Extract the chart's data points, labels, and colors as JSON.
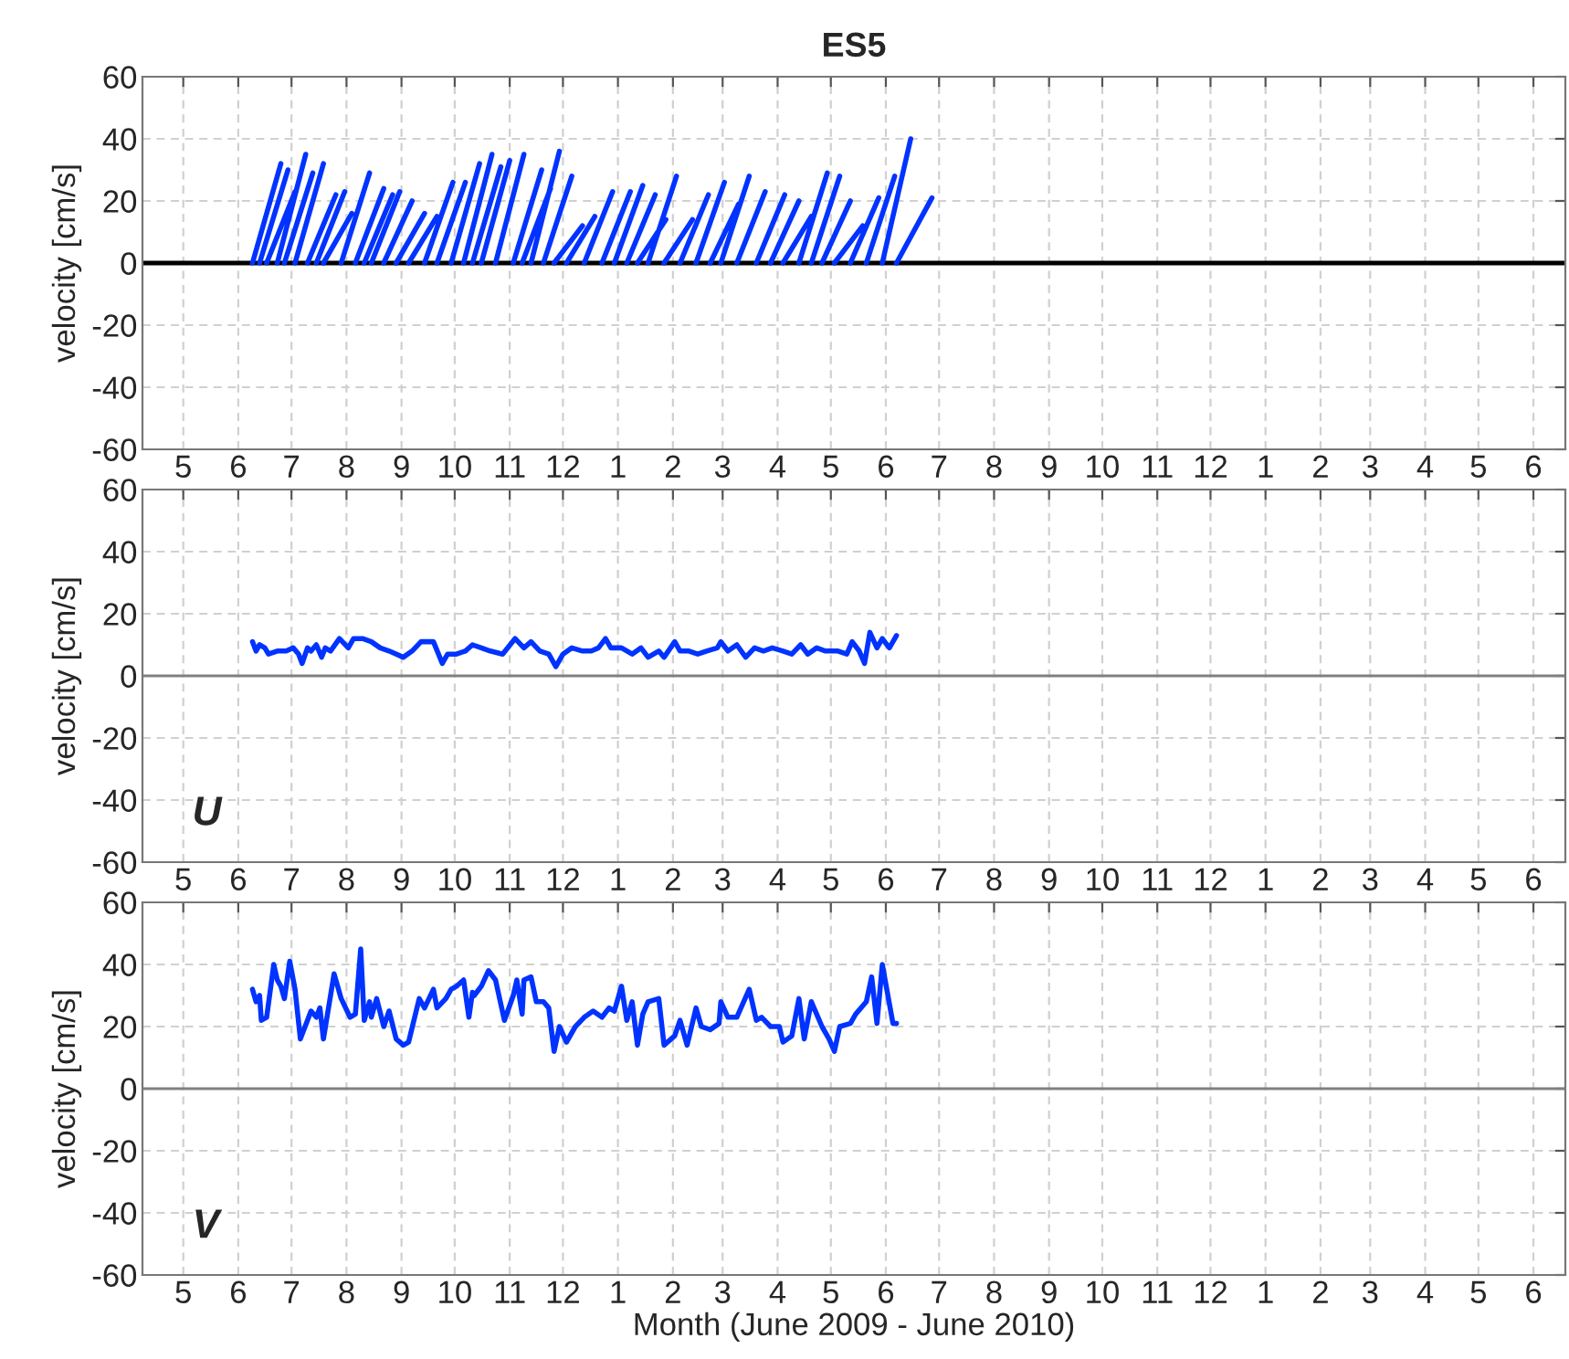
{
  "chart_data": [
    {
      "type": "line",
      "title": "ES5",
      "ylabel": "velocity [cm/s]",
      "xlim": [
        "2009-04-08",
        "2011-06-19"
      ],
      "ylim": [
        -60,
        60
      ],
      "yticks": [
        -60,
        -40,
        -20,
        0,
        20,
        40,
        60
      ],
      "xticks": [
        {
          "value": "2009-05-01",
          "label": "5"
        },
        {
          "value": "2009-06-01",
          "label": "6"
        },
        {
          "value": "2009-07-01",
          "label": "7"
        },
        {
          "value": "2009-08-01",
          "label": "8"
        },
        {
          "value": "2009-09-01",
          "label": "9"
        },
        {
          "value": "2009-10-01",
          "label": "10"
        },
        {
          "value": "2009-11-01",
          "label": "11"
        },
        {
          "value": "2009-12-01",
          "label": "12"
        },
        {
          "value": "2010-01-01",
          "label": "1"
        },
        {
          "value": "2010-02-01",
          "label": "2"
        },
        {
          "value": "2010-03-01",
          "label": "3"
        },
        {
          "value": "2010-04-01",
          "label": "4"
        },
        {
          "value": "2010-05-01",
          "label": "5"
        },
        {
          "value": "2010-06-01",
          "label": "6"
        },
        {
          "value": "2010-07-01",
          "label": "7"
        },
        {
          "value": "2010-08-01",
          "label": "8"
        },
        {
          "value": "2010-09-01",
          "label": "9"
        },
        {
          "value": "2010-10-01",
          "label": "10"
        },
        {
          "value": "2010-11-01",
          "label": "11"
        },
        {
          "value": "2010-12-01",
          "label": "12"
        },
        {
          "value": "2011-01-01",
          "label": "1"
        },
        {
          "value": "2011-02-01",
          "label": "2"
        },
        {
          "value": "2011-03-01",
          "label": "3"
        },
        {
          "value": "2011-04-01",
          "label": "4"
        },
        {
          "value": "2011-05-01",
          "label": "5"
        },
        {
          "value": "2011-06-01",
          "label": "6"
        }
      ],
      "grid": true,
      "ref_lines": [
        {
          "axis": "y",
          "value": 0,
          "color": "#000000"
        }
      ],
      "series": [
        {
          "color": "#0033ff",
          "x": [
            "2009-06-09",
            "2009-06-25",
            null,
            "2009-06-13",
            "2009-06-29",
            null,
            "2009-06-17",
            "2009-07-03",
            null,
            "2009-06-23",
            "2009-07-09",
            null,
            "2009-06-27",
            "2009-07-13",
            null,
            "2009-07-03",
            "2009-07-19",
            null,
            "2009-07-10",
            "2009-07-26",
            null,
            "2009-07-15",
            "2009-07-31",
            null,
            "2009-07-19",
            "2009-08-04",
            null,
            "2009-07-29",
            "2009-08-14",
            null,
            "2009-08-06",
            "2009-08-22",
            null,
            "2009-08-11",
            "2009-08-27",
            null,
            "2009-08-15",
            "2009-08-31",
            null,
            "2009-08-22",
            "2009-09-07",
            null,
            "2009-08-29",
            "2009-09-14",
            null,
            "2009-09-05",
            "2009-09-21",
            null,
            "2009-09-14",
            "2009-09-30",
            null,
            "2009-09-21",
            "2009-10-07",
            null,
            "2009-09-29",
            "2009-10-15",
            null,
            "2009-10-06",
            "2009-10-22",
            null,
            "2009-10-11",
            "2009-10-27",
            null,
            "2009-10-16",
            "2009-11-01",
            null,
            "2009-10-24",
            "2009-11-09",
            null,
            "2009-11-03",
            "2009-11-19",
            null,
            "2009-11-08",
            "2009-11-24",
            null,
            "2009-11-13",
            "2009-11-29",
            null,
            "2009-11-20",
            "2009-12-06",
            null,
            "2009-11-26",
            "2009-12-12",
            null,
            "2009-12-03",
            "2009-12-19",
            null,
            "2009-12-13",
            "2009-12-29",
            null,
            "2009-12-23",
            "2010-01-08",
            null,
            "2009-12-30",
            "2010-01-15",
            null,
            "2010-01-06",
            "2010-01-22",
            null,
            "2010-01-12",
            "2010-01-28",
            null,
            "2010-01-18",
            "2010-02-03",
            null,
            "2010-01-27",
            "2010-02-12",
            null,
            "2010-02-05",
            "2010-02-21",
            null,
            "2010-02-14",
            "2010-03-02",
            null,
            "2010-02-22",
            "2010-03-10",
            null,
            "2010-02-28",
            "2010-03-16",
            null,
            "2010-03-09",
            "2010-03-25",
            null,
            "2010-03-20",
            "2010-04-05",
            null,
            "2010-03-28",
            "2010-04-13",
            null,
            "2010-04-04",
            "2010-04-20",
            null,
            "2010-04-13",
            "2010-04-29",
            null,
            "2010-04-20",
            "2010-05-06",
            null,
            "2010-04-26",
            "2010-05-12",
            null,
            "2010-05-03",
            "2010-05-19",
            null,
            "2010-05-12",
            "2010-05-28",
            null,
            "2010-05-21",
            "2010-06-06",
            null,
            "2010-05-30",
            "2010-06-15",
            null,
            "2010-06-07",
            "2010-06-27",
            null
          ],
          "values": [
            0,
            32,
            null,
            0,
            30,
            null,
            0,
            23,
            null,
            0,
            35,
            null,
            0,
            29,
            null,
            0,
            32,
            null,
            0,
            22,
            null,
            0,
            23,
            null,
            0,
            16,
            null,
            0,
            29,
            null,
            0,
            24,
            null,
            0,
            22,
            null,
            0,
            23,
            null,
            0,
            20,
            null,
            0,
            16,
            null,
            0,
            15,
            null,
            0,
            26,
            null,
            0,
            26,
            null,
            0,
            32,
            null,
            0,
            35,
            null,
            0,
            31,
            null,
            0,
            33,
            null,
            0,
            35,
            null,
            0,
            30,
            null,
            0,
            24,
            null,
            0,
            36,
            null,
            0,
            28,
            null,
            0,
            12,
            null,
            0,
            15,
            null,
            0,
            23,
            null,
            0,
            23,
            null,
            0,
            25,
            null,
            0,
            22,
            null,
            0,
            14,
            null,
            0,
            28,
            null,
            0,
            14,
            null,
            0,
            22,
            null,
            0,
            26,
            null,
            0,
            19,
            null,
            0,
            28,
            null,
            0,
            23,
            null,
            0,
            22,
            null,
            0,
            20,
            null,
            0,
            15,
            null,
            0,
            29,
            null,
            0,
            28,
            null,
            0,
            20,
            null,
            0,
            12,
            null,
            0,
            21,
            null,
            0,
            28,
            null,
            0,
            40,
            null,
            0,
            21,
            null
          ]
        }
      ]
    },
    {
      "type": "line",
      "ylabel": "velocity [cm/s]",
      "xlim": [
        "2009-04-08",
        "2011-06-19"
      ],
      "ylim": [
        -60,
        60
      ],
      "yticks": [
        -60,
        -40,
        -20,
        0,
        20,
        40,
        60
      ],
      "xticks": [
        {
          "value": "2009-05-01",
          "label": "5"
        },
        {
          "value": "2009-06-01",
          "label": "6"
        },
        {
          "value": "2009-07-01",
          "label": "7"
        },
        {
          "value": "2009-08-01",
          "label": "8"
        },
        {
          "value": "2009-09-01",
          "label": "9"
        },
        {
          "value": "2009-10-01",
          "label": "10"
        },
        {
          "value": "2009-11-01",
          "label": "11"
        },
        {
          "value": "2009-12-01",
          "label": "12"
        },
        {
          "value": "2010-01-01",
          "label": "1"
        },
        {
          "value": "2010-02-01",
          "label": "2"
        },
        {
          "value": "2010-03-01",
          "label": "3"
        },
        {
          "value": "2010-04-01",
          "label": "4"
        },
        {
          "value": "2010-05-01",
          "label": "5"
        },
        {
          "value": "2010-06-01",
          "label": "6"
        },
        {
          "value": "2010-07-01",
          "label": "7"
        },
        {
          "value": "2010-08-01",
          "label": "8"
        },
        {
          "value": "2010-09-01",
          "label": "9"
        },
        {
          "value": "2010-10-01",
          "label": "10"
        },
        {
          "value": "2010-11-01",
          "label": "11"
        },
        {
          "value": "2010-12-01",
          "label": "12"
        },
        {
          "value": "2011-01-01",
          "label": "1"
        },
        {
          "value": "2011-02-01",
          "label": "2"
        },
        {
          "value": "2011-03-01",
          "label": "3"
        },
        {
          "value": "2011-04-01",
          "label": "4"
        },
        {
          "value": "2011-05-01",
          "label": "5"
        },
        {
          "value": "2011-06-01",
          "label": "6"
        }
      ],
      "grid": true,
      "ref_lines": [
        {
          "axis": "y",
          "value": 0,
          "color": "#808080"
        }
      ],
      "annotations": [
        "U"
      ],
      "series": [
        {
          "color": "#0033ff",
          "x": [
            "2009-06-09",
            "2009-06-11",
            "2009-06-13",
            "2009-06-16",
            "2009-06-18",
            "2009-06-23",
            "2009-06-28",
            "2009-07-02",
            "2009-07-05",
            "2009-07-07",
            "2009-07-10",
            "2009-07-12",
            "2009-07-15",
            "2009-07-18",
            "2009-07-20",
            "2009-07-23",
            "2009-07-28",
            "2009-08-02",
            "2009-08-05",
            "2009-08-10",
            "2009-08-15",
            "2009-08-20",
            "2009-08-25",
            "2009-09-02",
            "2009-09-07",
            "2009-09-12",
            "2009-09-19",
            "2009-09-24",
            "2009-09-27",
            "2009-10-02",
            "2009-10-07",
            "2009-10-11",
            "2009-10-16",
            "2009-10-21",
            "2009-10-28",
            "2009-11-04",
            "2009-11-09",
            "2009-11-13",
            "2009-11-18",
            "2009-11-23",
            "2009-11-27",
            "2009-12-01",
            "2009-12-06",
            "2009-12-12",
            "2009-12-17",
            "2009-12-21",
            "2009-12-25",
            "2009-12-28",
            "2010-01-03",
            "2010-01-09",
            "2010-01-14",
            "2010-01-18",
            "2010-01-24",
            "2010-01-27",
            "2010-02-02",
            "2010-02-05",
            "2010-02-10",
            "2010-02-15",
            "2010-02-20",
            "2010-02-26",
            "2010-02-28",
            "2010-03-04",
            "2010-03-09",
            "2010-03-14",
            "2010-03-19",
            "2010-03-24",
            "2010-03-29",
            "2010-04-04",
            "2010-04-09",
            "2010-04-14",
            "2010-04-18",
            "2010-04-23",
            "2010-04-28",
            "2010-05-05",
            "2010-05-10",
            "2010-05-13",
            "2010-05-17",
            "2010-05-20",
            "2010-05-23",
            "2010-05-27",
            "2010-05-30",
            "2010-06-03",
            "2010-06-07"
          ],
          "values": [
            11,
            8,
            10,
            9,
            7,
            8,
            8,
            9,
            7,
            4,
            9,
            8,
            10,
            6,
            9,
            8,
            12,
            9,
            12,
            12,
            11,
            9,
            8,
            6,
            8,
            11,
            11,
            4,
            7,
            7,
            8,
            10,
            9,
            8,
            7,
            12,
            9,
            11,
            8,
            7,
            3,
            7,
            9,
            8,
            8,
            9,
            12,
            9,
            9,
            7,
            9,
            6,
            8,
            6,
            11,
            8,
            8,
            7,
            8,
            9,
            11,
            8,
            10,
            6,
            9,
            8,
            9,
            8,
            7,
            10,
            7,
            9,
            8,
            8,
            7,
            11,
            8,
            4,
            14,
            9,
            12,
            9,
            13
          ]
        }
      ]
    },
    {
      "type": "line",
      "ylabel": "velocity [cm/s]",
      "xlabel": "Month (June 2009 - June 2010)",
      "xlim": [
        "2009-04-08",
        "2011-06-19"
      ],
      "ylim": [
        -60,
        60
      ],
      "yticks": [
        -60,
        -40,
        -20,
        0,
        20,
        40,
        60
      ],
      "xticks": [
        {
          "value": "2009-05-01",
          "label": "5"
        },
        {
          "value": "2009-06-01",
          "label": "6"
        },
        {
          "value": "2009-07-01",
          "label": "7"
        },
        {
          "value": "2009-08-01",
          "label": "8"
        },
        {
          "value": "2009-09-01",
          "label": "9"
        },
        {
          "value": "2009-10-01",
          "label": "10"
        },
        {
          "value": "2009-11-01",
          "label": "11"
        },
        {
          "value": "2009-12-01",
          "label": "12"
        },
        {
          "value": "2010-01-01",
          "label": "1"
        },
        {
          "value": "2010-02-01",
          "label": "2"
        },
        {
          "value": "2010-03-01",
          "label": "3"
        },
        {
          "value": "2010-04-01",
          "label": "4"
        },
        {
          "value": "2010-05-01",
          "label": "5"
        },
        {
          "value": "2010-06-01",
          "label": "6"
        },
        {
          "value": "2010-07-01",
          "label": "7"
        },
        {
          "value": "2010-08-01",
          "label": "8"
        },
        {
          "value": "2010-09-01",
          "label": "9"
        },
        {
          "value": "2010-10-01",
          "label": "10"
        },
        {
          "value": "2010-11-01",
          "label": "11"
        },
        {
          "value": "2010-12-01",
          "label": "12"
        },
        {
          "value": "2011-01-01",
          "label": "1"
        },
        {
          "value": "2011-02-01",
          "label": "2"
        },
        {
          "value": "2011-03-01",
          "label": "3"
        },
        {
          "value": "2011-04-01",
          "label": "4"
        },
        {
          "value": "2011-05-01",
          "label": "5"
        },
        {
          "value": "2011-06-01",
          "label": "6"
        }
      ],
      "grid": true,
      "ref_lines": [
        {
          "axis": "y",
          "value": 0,
          "color": "#808080"
        }
      ],
      "annotations": [
        "V"
      ],
      "series": [
        {
          "color": "#0033ff",
          "x": [
            "2009-06-09",
            "2009-06-11",
            "2009-06-13",
            "2009-06-14",
            "2009-06-17",
            "2009-06-21",
            "2009-06-23",
            "2009-06-25",
            "2009-06-27",
            "2009-06-30",
            "2009-07-03",
            "2009-07-06",
            "2009-07-10",
            "2009-07-12",
            "2009-07-15",
            "2009-07-17",
            "2009-07-19",
            "2009-07-25",
            "2009-07-29",
            "2009-08-03",
            "2009-08-06",
            "2009-08-09",
            "2009-08-11",
            "2009-08-14",
            "2009-08-15",
            "2009-08-18",
            "2009-08-22",
            "2009-08-25",
            "2009-08-29",
            "2009-09-02",
            "2009-09-05",
            "2009-09-11",
            "2009-09-14",
            "2009-09-19",
            "2009-09-21",
            "2009-09-26",
            "2009-09-29",
            "2009-10-02",
            "2009-10-06",
            "2009-10-09",
            "2009-10-11",
            "2009-10-12",
            "2009-10-16",
            "2009-10-20",
            "2009-10-24",
            "2009-10-29",
            "2009-11-03",
            "2009-11-05",
            "2009-11-08",
            "2009-11-09",
            "2009-11-13",
            "2009-11-16",
            "2009-11-20",
            "2009-11-23",
            "2009-11-26",
            "2009-11-29",
            "2009-12-03",
            "2009-12-08",
            "2009-12-13",
            "2009-12-18",
            "2009-12-23",
            "2009-12-27",
            "2009-12-30",
            "2010-01-03",
            "2010-01-06",
            "2010-01-09",
            "2010-01-12",
            "2010-01-15",
            "2010-01-18",
            "2010-01-24",
            "2010-01-27",
            "2010-02-02",
            "2010-02-05",
            "2010-02-09",
            "2010-02-14",
            "2010-02-17",
            "2010-02-22",
            "2010-02-27",
            "2010-02-28",
            "2010-03-04",
            "2010-03-09",
            "2010-03-16",
            "2010-03-20",
            "2010-03-23",
            "2010-03-28",
            "2010-04-02",
            "2010-04-04",
            "2010-04-09",
            "2010-04-13",
            "2010-04-16",
            "2010-04-20",
            "2010-04-23",
            "2010-04-26",
            "2010-04-30",
            "2010-05-03",
            "2010-05-06",
            "2010-05-12",
            "2010-05-15",
            "2010-05-21",
            "2010-05-24",
            "2010-05-27",
            "2010-05-30",
            "2010-06-05",
            "2010-06-07"
          ],
          "values": [
            32,
            28,
            30,
            22,
            23,
            40,
            35,
            33,
            29,
            41,
            32,
            16,
            22,
            25,
            23,
            26,
            16,
            37,
            29,
            23,
            24,
            45,
            22,
            28,
            23,
            29,
            20,
            25,
            16,
            14,
            15,
            29,
            26,
            32,
            26,
            29,
            32,
            33,
            35,
            23,
            31,
            30,
            33,
            38,
            35,
            22,
            30,
            35,
            24,
            35,
            36,
            28,
            28,
            26,
            12,
            20,
            15,
            20,
            23,
            25,
            23,
            26,
            25,
            33,
            22,
            28,
            14,
            24,
            28,
            29,
            14,
            17,
            22,
            14,
            26,
            20,
            19,
            21,
            28,
            23,
            23,
            32,
            22,
            23,
            20,
            20,
            15,
            17,
            29,
            16,
            28,
            24,
            20,
            16,
            12,
            20,
            21,
            24,
            28,
            36,
            21,
            40,
            21,
            21
          ]
        }
      ]
    }
  ]
}
